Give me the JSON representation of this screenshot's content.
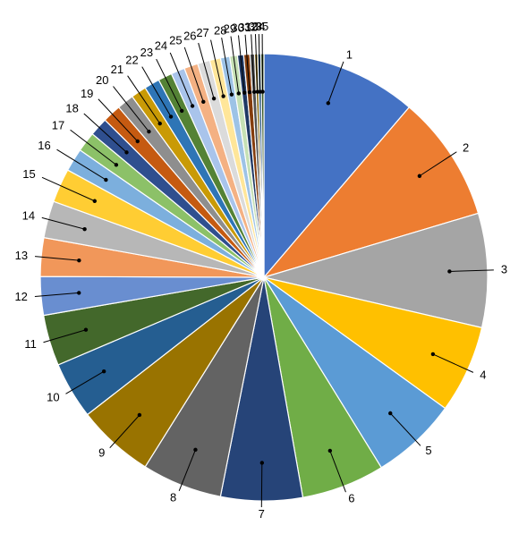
{
  "chart_data": {
    "type": "pie",
    "title": "",
    "categories": [
      "1",
      "2",
      "3",
      "4",
      "5",
      "6",
      "7",
      "8",
      "9",
      "10",
      "11",
      "12",
      "13",
      "14",
      "15",
      "16",
      "17",
      "18",
      "19",
      "20",
      "21",
      "22",
      "23",
      "24",
      "25",
      "26",
      "27",
      "28",
      "29",
      "30",
      "31",
      "32",
      "33",
      "34",
      "35"
    ],
    "values": [
      10.1,
      8.2,
      7.4,
      5.7,
      5.6,
      5.4,
      5.3,
      5.2,
      5.0,
      3.7,
      3.3,
      2.5,
      2.5,
      2.4,
      2.2,
      1.5,
      1.3,
      1.2,
      1.2,
      1.1,
      1.0,
      1.0,
      0.9,
      0.9,
      0.9,
      0.8,
      0.7,
      0.6,
      0.5,
      0.4,
      0.4,
      0.3,
      0.2,
      0.2,
      0.2
    ],
    "colors": [
      "#4472C4",
      "#ED7D31",
      "#A5A5A5",
      "#FFC000",
      "#5B9BD5",
      "#70AD47",
      "#264478",
      "#636363",
      "#997300",
      "#255E91",
      "#43682B",
      "#698ED0",
      "#F1975A",
      "#B7B7B7",
      "#FFCD33",
      "#7CAFDD",
      "#8CC168",
      "#2F4F8F",
      "#C55A11",
      "#8E8E8E",
      "#C99A06",
      "#2E75B6",
      "#548235",
      "#A9C4EB",
      "#F4B183",
      "#DBDBDB",
      "#FFE699",
      "#9DC3E6",
      "#C5E0B4",
      "#1F3864",
      "#843C0C",
      "#525252",
      "#7F6000",
      "#1F4E79",
      "#385723"
    ],
    "data_labels": [
      "1",
      "2",
      "3",
      "4",
      "5",
      "6",
      "7",
      "8",
      "9",
      "10",
      "11",
      "12",
      "13",
      "14",
      "15",
      "16",
      "17",
      "18",
      "19",
      "20",
      "21",
      "22",
      "23",
      "24",
      "25",
      "26",
      "27",
      "28",
      "29",
      "30",
      "31",
      "32",
      "33",
      "34",
      "35"
    ],
    "start_angle_deg": 0,
    "direction": "clockwise",
    "legend": "none"
  }
}
